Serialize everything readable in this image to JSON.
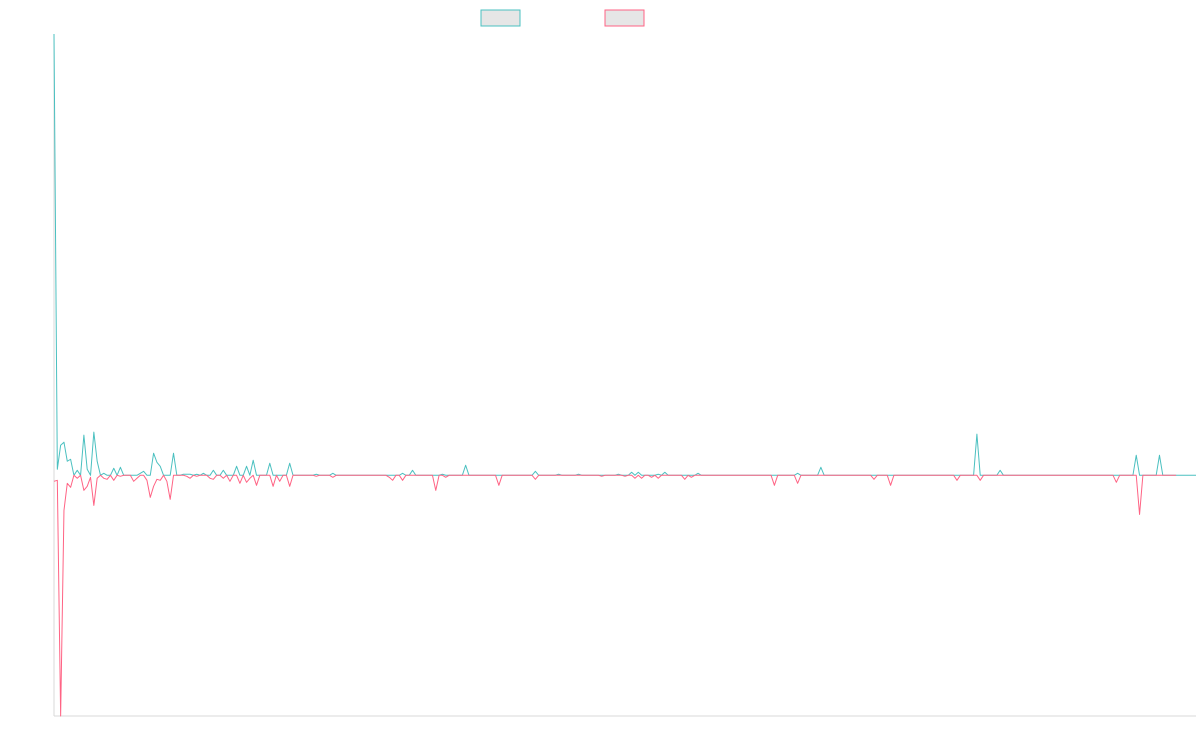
{
  "chart_data": {
    "type": "line",
    "title": "",
    "xlabel": "",
    "ylabel": "",
    "ylim": [
      -24,
      44
    ],
    "grid": false,
    "legend_position": "top-center",
    "series": [
      {
        "color": "#4bc0c0",
        "fill": "#e6e6e6",
        "values": [
          44,
          0.6,
          3.0,
          3.3,
          1.4,
          1.6,
          0.0,
          0.5,
          0.0,
          4.0,
          0.6,
          0.0,
          4.3,
          1.4,
          0.0,
          0.2,
          0.0,
          0.0,
          0.7,
          0.0,
          0.8,
          0.0,
          0.0,
          0.0,
          0.0,
          0.0,
          0.2,
          0.4,
          0.0,
          0.0,
          2.2,
          1.3,
          0.9,
          0.0,
          0.0,
          0.0,
          2.2,
          0.0,
          0.0,
          0.1,
          0.1,
          0.1,
          0.0,
          0.1,
          0.0,
          0.2,
          0.0,
          0.0,
          0.5,
          0.0,
          0.0,
          0.5,
          0.0,
          0.0,
          0.0,
          0.9,
          0.0,
          0.0,
          0.9,
          0.0,
          1.5,
          0.0,
          0.0,
          0.0,
          0.0,
          1.2,
          0.0,
          0.0,
          0.0,
          0.0,
          0.0,
          1.2,
          0.0,
          0.0,
          0.0,
          0.0,
          0.0,
          0.0,
          0.0,
          0.1,
          0.0,
          0.0,
          0.0,
          0.0,
          0.2,
          0.0,
          0.0,
          0.0,
          0.0,
          0.0,
          0.0,
          0.0,
          0.0,
          0.0,
          0.0,
          0.0,
          0.0,
          0.0,
          0.0,
          0.0,
          0.0,
          0.0,
          0.0,
          0.0,
          0.0,
          0.2,
          0.0,
          0.0,
          0.5,
          0.0,
          0.0,
          0.0,
          0.0,
          0.0,
          0.0,
          0.0,
          0.0,
          0.1,
          0.0,
          0.0,
          0.0,
          0.0,
          0.0,
          0.0,
          1.0,
          0.0,
          0.0,
          0.0,
          0.0,
          0.0,
          0.0,
          0.0,
          0.0,
          0.0,
          0.0,
          0.0,
          0.0,
          0.0,
          0.0,
          0.0,
          0.0,
          0.0,
          0.0,
          0.0,
          0.0,
          0.4,
          0.0,
          0.0,
          0.0,
          0.0,
          0.0,
          0.0,
          0.1,
          0.0,
          0.0,
          0.0,
          0.0,
          0.0,
          0.1,
          0.0,
          0.0,
          0.0,
          0.0,
          0.0,
          0.0,
          0.0,
          0.0,
          0.0,
          0.0,
          0.0,
          0.1,
          0.0,
          0.0,
          0.0,
          0.3,
          0.0,
          0.3,
          0.0,
          0.0,
          0.0,
          0.0,
          0.0,
          0.1,
          0.0,
          0.3,
          0.0,
          0.0,
          0.0,
          0.0,
          0.0,
          0.0,
          0.0,
          0.0,
          0.0,
          0.2,
          0.0,
          0.0,
          0.0,
          0.0,
          0.0,
          0.0,
          0.0,
          0.0,
          0.0,
          0.0,
          0.0,
          0.0,
          0.0,
          0.0,
          0.0,
          0.0,
          0.0,
          0.0,
          0.0,
          0.0,
          0.0,
          0.0,
          0.0,
          0.0,
          0.0,
          0.0,
          0.0,
          0.0,
          0.0,
          0.2,
          0.0,
          0.0,
          0.0,
          0.0,
          0.0,
          0.0,
          0.8,
          0.0,
          0.0,
          0.0,
          0.0,
          0.0,
          0.0,
          0.0,
          0.0,
          0.0,
          0.0,
          0.0,
          0.0,
          0.0,
          0.0,
          0.0,
          0.0,
          0.0,
          0.0,
          0.0,
          0.0,
          0.0,
          0.0,
          0.0,
          0.0,
          0.0,
          0.0,
          0.0,
          0.0,
          0.0,
          0.0,
          0.0,
          0.0,
          0.0,
          0.0,
          0.0,
          0.0,
          0.0,
          0.0,
          0.0,
          0.0,
          0.0,
          0.0,
          0.0,
          0.0,
          0.0,
          0.0,
          4.1,
          0.0,
          0.0,
          0.0,
          0.0,
          0.0,
          0.0,
          0.5,
          0.0,
          0.0,
          0.0,
          0.0,
          0.0,
          0.0,
          0.0,
          0.0,
          0.0,
          0.0,
          0.0,
          0.0,
          0.0,
          0.0,
          0.0,
          0.0,
          0.0,
          0.0,
          0.0,
          0.0,
          0.0,
          0.0,
          0.0,
          0.0,
          0.0,
          0.0,
          0.0,
          0.0,
          0.0,
          0.0,
          0.0,
          0.0,
          0.0,
          0.0,
          0.0,
          0.0,
          0.0,
          0.0,
          0.0,
          0.0,
          2.0,
          0.0,
          0.0,
          0.0,
          0.0,
          0.0,
          0.0,
          2.0,
          0.0,
          0.0,
          0.0,
          0.0,
          0.0,
          0.0,
          0.0,
          0.0,
          0.0,
          0.0,
          0.0
        ]
      },
      {
        "color": "#ff6384",
        "fill": "#e6e6e6",
        "values": [
          -0.6,
          -0.5,
          -24,
          -3.5,
          -0.8,
          -1.2,
          0.0,
          -0.3,
          0.0,
          -1.5,
          -1.1,
          -0.2,
          -3.0,
          -0.3,
          0.0,
          -0.3,
          -0.4,
          0.0,
          -0.5,
          0.0,
          -0.1,
          0.0,
          0.0,
          0.0,
          -0.6,
          -0.3,
          0.0,
          0.0,
          -0.5,
          -2.2,
          -1.1,
          -0.4,
          -0.5,
          0.0,
          -0.6,
          -2.4,
          0.0,
          0.0,
          0.0,
          0.0,
          -0.1,
          -0.3,
          0.0,
          -0.1,
          0.0,
          0.0,
          0.0,
          -0.3,
          -0.4,
          0.0,
          0.0,
          -0.3,
          0.0,
          -0.6,
          0.0,
          0.0,
          -0.8,
          0.0,
          -0.7,
          -0.3,
          0.0,
          -1.0,
          0.0,
          0.0,
          0.0,
          0.0,
          -1.1,
          0.0,
          -0.6,
          0.0,
          0.0,
          -1.1,
          0.0,
          0.0,
          0.0,
          0.0,
          0.0,
          0.0,
          0.0,
          -0.1,
          0.0,
          0.0,
          0.0,
          0.0,
          -0.2,
          0.0,
          0.0,
          0.0,
          0.0,
          0.0,
          0.0,
          0.0,
          0.0,
          0.0,
          0.0,
          0.0,
          0.0,
          0.0,
          0.0,
          0.0,
          0.0,
          -0.2,
          -0.5,
          0.0,
          0.0,
          -0.5,
          0.0,
          0.0,
          0.0,
          0.0,
          0.0,
          0.0,
          0.0,
          0.0,
          0.0,
          -1.5,
          0.0,
          0.0,
          -0.2,
          0.0,
          0.0,
          0.0,
          0.0,
          0.0,
          0.0,
          0.0,
          0.0,
          0.0,
          0.0,
          0.0,
          0.0,
          0.0,
          0.0,
          0.0,
          -1.0,
          0.0,
          0.0,
          0.0,
          0.0,
          0.0,
          0.0,
          0.0,
          0.0,
          0.0,
          0.0,
          -0.4,
          0.0,
          0.0,
          0.0,
          0.0,
          0.0,
          0.0,
          0.0,
          0.0,
          0.0,
          0.0,
          0.0,
          0.0,
          0.0,
          0.0,
          0.0,
          0.0,
          0.0,
          0.0,
          0.0,
          -0.1,
          0.0,
          0.0,
          0.0,
          0.0,
          0.0,
          0.0,
          -0.1,
          0.0,
          0.0,
          -0.3,
          0.0,
          -0.3,
          0.0,
          0.0,
          -0.2,
          0.0,
          -0.3,
          0.0,
          0.0,
          0.0,
          0.0,
          0.0,
          0.0,
          0.0,
          -0.4,
          0.0,
          -0.2,
          0.0,
          0.0,
          0.0,
          0.0,
          0.0,
          0.0,
          0.0,
          0.0,
          0.0,
          0.0,
          0.0,
          0.0,
          0.0,
          0.0,
          0.0,
          0.0,
          0.0,
          0.0,
          0.0,
          0.0,
          0.0,
          0.0,
          0.0,
          0.0,
          -1.0,
          0.0,
          0.0,
          0.0,
          0.0,
          0.0,
          0.0,
          -0.8,
          0.0,
          0.0,
          0.0,
          0.0,
          0.0,
          0.0,
          0.0,
          0.0,
          0.0,
          0.0,
          0.0,
          0.0,
          0.0,
          0.0,
          0.0,
          0.0,
          0.0,
          0.0,
          0.0,
          0.0,
          0.0,
          0.0,
          -0.4,
          0.0,
          0.0,
          0.0,
          0.0,
          -1.0,
          0.0,
          0.0,
          0.0,
          0.0,
          0.0,
          0.0,
          0.0,
          0.0,
          0.0,
          0.0,
          0.0,
          0.0,
          0.0,
          0.0,
          0.0,
          0.0,
          0.0,
          0.0,
          0.0,
          -0.5,
          0.0,
          0.0,
          0.0,
          0.0,
          0.0,
          0.0,
          -0.5,
          0.0,
          0.0,
          0.0,
          0.0,
          0.0,
          0.0,
          0.0,
          0.0,
          0.0,
          0.0,
          0.0,
          0.0,
          0.0,
          0.0,
          0.0,
          0.0,
          0.0,
          0.0,
          0.0,
          0.0,
          0.0,
          0.0,
          0.0,
          0.0,
          0.0,
          0.0,
          0.0,
          0.0,
          0.0,
          0.0,
          0.0,
          0.0,
          0.0,
          0.0,
          0.0,
          0.0,
          0.0,
          0.0,
          0.0,
          0.0,
          -0.7,
          0.0,
          0.0,
          0.0,
          0.0,
          0.0,
          0.0,
          -3.9,
          0.0,
          0.0,
          0.0,
          0.0,
          0.0,
          0.0,
          0.0,
          0.0,
          0.0,
          0.0,
          0.0
        ]
      }
    ]
  }
}
